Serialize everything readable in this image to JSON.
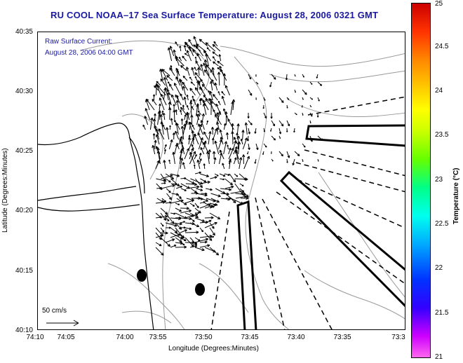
{
  "title": "RU COOL  NOAA–17  Sea Surface Temperature:  August 28, 2006 0321 GMT",
  "annotation": {
    "line1": "Raw Surface Current:",
    "line2": "August 28, 2006 04:00 GMT"
  },
  "scale_label": "50 cm/s",
  "axes": {
    "xlabel": "Longitude (Degrees:Minutes)",
    "ylabel": "Latitude (Degrees:Minutes)",
    "xticks": [
      "74:10",
      "74:05",
      "74:00",
      "73:55",
      "73:50",
      "73:45",
      "73:40",
      "73:35",
      "73:3"
    ],
    "yticks": [
      "40:35",
      "40:30",
      "40:25",
      "40:20",
      "40:15",
      "40:10"
    ]
  },
  "colorbar": {
    "label": "Temperature (°C)",
    "ticks": [
      "25",
      "24.5",
      "24",
      "23.5",
      "23",
      "22.5",
      "22",
      "21.5",
      "21"
    ],
    "min": 21,
    "max": 25,
    "colors": [
      "#ff66ee",
      "#cc00ff",
      "#3300ff",
      "#00aaff",
      "#00ffee",
      "#66ff00",
      "#ffff00",
      "#ff8800",
      "#cc0000"
    ]
  },
  "map_features": {
    "coastline": "New Jersey / Raritan Bay",
    "vector_field": "surface current arrows",
    "markers": "two filled black ovals",
    "overlays": "solid and dashed shipping lane outlines"
  }
}
